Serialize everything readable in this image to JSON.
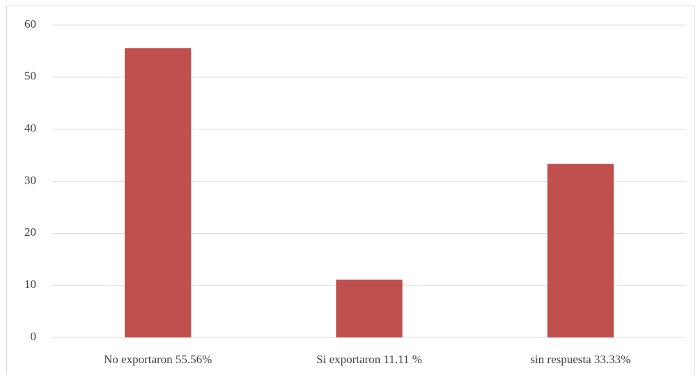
{
  "chart_data": {
    "type": "bar",
    "categories": [
      "No exportaron 55.56%",
      "Si exportaron 11.11 %",
      "sin respuesta 33.33%"
    ],
    "values": [
      55.56,
      11.11,
      33.33
    ],
    "color": "#c0504d",
    "ylim": [
      0,
      60
    ],
    "yticks": [
      0,
      10,
      20,
      30,
      40,
      50,
      60
    ],
    "grid": true
  }
}
